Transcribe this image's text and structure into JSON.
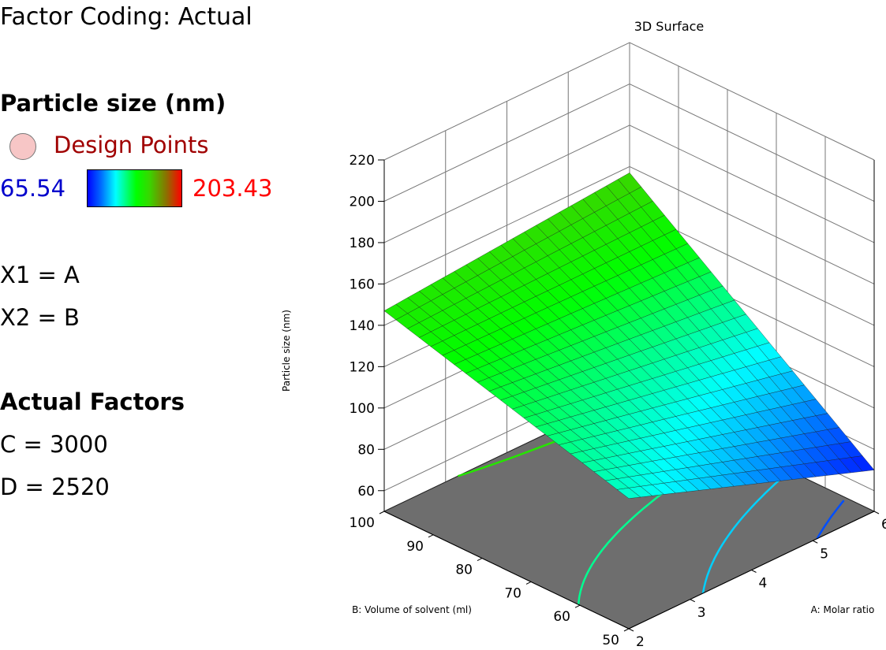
{
  "legend": {
    "factor_coding": "Factor Coding: Actual",
    "response_title": "Particle size (nm)",
    "design_points_label": "Design Points",
    "range_min": "65.54",
    "range_max": "203.43",
    "x1_line": "X1 = A",
    "x2_line": "X2 = B",
    "actual_factors_title": "Actual Factors",
    "factor_c": "C = 3000",
    "factor_d": "D = 2520"
  },
  "colors": {
    "gradient_low": "#0000ff",
    "gradient_mid": "#00ff00",
    "gradient_high": "#ff0000",
    "floor": "#6e6e6e",
    "design_point": "#f7c6c6"
  },
  "chart_data": {
    "type": "surface3d",
    "title": "3D Surface",
    "xlabel": "A: Molar ratio",
    "ylabel": "B: Volume of solvent (ml)",
    "zlabel": "Particle size (nm)",
    "x_ticks": [
      "2",
      "3",
      "4",
      "5",
      "6"
    ],
    "y_ticks": [
      "50",
      "60",
      "70",
      "80",
      "90",
      "100"
    ],
    "z_ticks": [
      "60",
      "80",
      "100",
      "120",
      "140",
      "160",
      "180",
      "200",
      "220"
    ],
    "xlim": [
      2,
      6
    ],
    "ylim": [
      50,
      100
    ],
    "zlim": [
      50,
      220
    ],
    "color_range": [
      65.54,
      203.43
    ],
    "corner_values": [
      {
        "a": 2,
        "b": 100,
        "size": 147
      },
      {
        "a": 6,
        "b": 100,
        "size": 157
      },
      {
        "a": 2,
        "b": 50,
        "size": 113
      },
      {
        "a": 6,
        "b": 50,
        "size": 70
      }
    ],
    "contour_levels": [
      80,
      100,
      120,
      140,
      150
    ],
    "grid": true
  }
}
